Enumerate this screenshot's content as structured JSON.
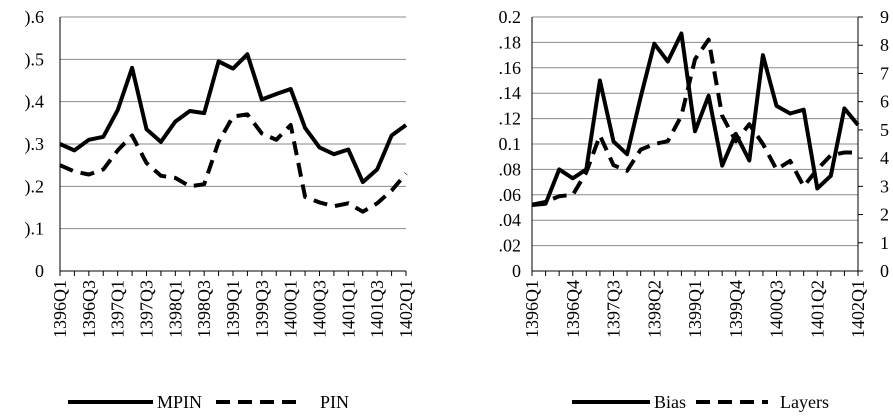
{
  "chart_data": [
    {
      "type": "line",
      "title": "",
      "xlabel": "",
      "ylabel": "",
      "ylim": [
        0,
        0.6
      ],
      "y_ticks": [
        0,
        0.1,
        0.2,
        0.3,
        0.4,
        0.5,
        0.6
      ],
      "y_tick_labels": [
        "0",
        ").1",
        ").2",
        ").3",
        ").4",
        ").5",
        ").6"
      ],
      "grid": "horizontal",
      "legend_position": "bottom",
      "categories": [
        "1396Q1",
        "1396Q2",
        "1396Q3",
        "1396Q4",
        "1397Q1",
        "1397Q2",
        "1397Q3",
        "1397Q4",
        "1398Q1",
        "1398Q2",
        "1398Q3",
        "1398Q4",
        "1399Q1",
        "1399Q2",
        "1399Q3",
        "1399Q4",
        "1400Q1",
        "1400Q2",
        "1400Q3",
        "1400Q4",
        "1401Q1",
        "1401Q2",
        "1401Q3",
        "1401Q4",
        "1402Q1"
      ],
      "x_tick_labels_shown": [
        "1396Q1",
        "1396Q3",
        "1397Q1",
        "1397Q3",
        "1398Q1",
        "1398Q3",
        "1399Q1",
        "1399Q3",
        "1400Q1",
        "1400Q3",
        "1401Q1",
        "1401Q3",
        "1402Q1"
      ],
      "series": [
        {
          "name": "MPIN",
          "style": "solid",
          "color": "#000000",
          "values": [
            0.3,
            0.285,
            0.31,
            0.317,
            0.38,
            0.48,
            0.335,
            0.305,
            0.353,
            0.378,
            0.373,
            0.495,
            0.478,
            0.512,
            0.405,
            0.418,
            0.43,
            0.338,
            0.292,
            0.276,
            0.287,
            0.21,
            0.24,
            0.32,
            0.345
          ]
        },
        {
          "name": "PIN",
          "style": "dashed",
          "color": "#000000",
          "values": [
            0.25,
            0.235,
            0.228,
            0.24,
            0.285,
            0.32,
            0.255,
            0.225,
            0.22,
            0.2,
            0.205,
            0.305,
            0.365,
            0.37,
            0.325,
            0.31,
            0.345,
            0.175,
            0.162,
            0.153,
            0.16,
            0.14,
            0.16,
            0.19,
            0.23
          ]
        }
      ]
    },
    {
      "type": "line",
      "title": "",
      "xlabel": "",
      "ylabel": "",
      "ylim": [
        0,
        0.2
      ],
      "y_ticks": [
        0,
        0.02,
        0.04,
        0.06,
        0.08,
        0.1,
        0.12,
        0.14,
        0.16,
        0.18,
        0.2
      ],
      "y_tick_labels": [
        "0",
        ".02",
        ".04",
        ".06",
        ".08",
        "0.1",
        ".12",
        ".14",
        ".16",
        ".18",
        "0.2"
      ],
      "y2lim": [
        0,
        9
      ],
      "y2_ticks": [
        0,
        1,
        2,
        3,
        4,
        5,
        6,
        7,
        8,
        9
      ],
      "y2_tick_labels": [
        "0",
        "1",
        "2",
        "3",
        "4",
        "5",
        "6",
        "7",
        "8",
        "9"
      ],
      "grid": "horizontal",
      "legend_position": "bottom",
      "categories": [
        "1396Q1",
        "1396Q2",
        "1396Q3",
        "1396Q4",
        "1397Q1",
        "1397Q2",
        "1397Q3",
        "1397Q4",
        "1398Q1",
        "1398Q2",
        "1398Q3",
        "1398Q4",
        "1399Q1",
        "1399Q2",
        "1399Q3",
        "1399Q4",
        "1400Q1",
        "1400Q2",
        "1400Q3",
        "1400Q4",
        "1401Q1",
        "1401Q2",
        "1401Q3",
        "1401Q4",
        "1402Q1"
      ],
      "x_tick_labels_shown": [
        "1396Q1",
        "1396Q4",
        "1397Q3",
        "1398Q2",
        "1399Q1",
        "1399Q4",
        "1400Q3",
        "1401Q2",
        "1402Q1"
      ],
      "series": [
        {
          "name": "Bias",
          "axis": "left",
          "style": "solid",
          "color": "#000000",
          "values": [
            0.052,
            0.053,
            0.08,
            0.073,
            0.08,
            0.15,
            0.102,
            0.092,
            0.137,
            0.179,
            0.165,
            0.187,
            0.11,
            0.138,
            0.083,
            0.108,
            0.087,
            0.17,
            0.13,
            0.124,
            0.127,
            0.065,
            0.075,
            0.128,
            0.115
          ]
        },
        {
          "name": "Layers",
          "axis": "right",
          "style": "dashed",
          "color": "#000000",
          "values": [
            2.35,
            2.45,
            2.65,
            2.7,
            3.5,
            4.8,
            3.75,
            3.55,
            4.3,
            4.5,
            4.6,
            5.5,
            7.5,
            8.2,
            5.5,
            4.6,
            5.2,
            4.5,
            3.6,
            3.9,
            3.0,
            3.6,
            4.1,
            4.2,
            4.2
          ]
        }
      ]
    }
  ]
}
